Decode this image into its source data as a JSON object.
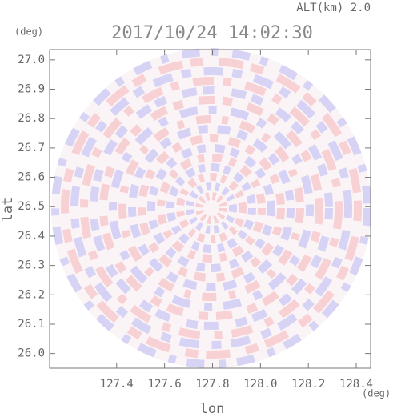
{
  "chart_data": {
    "type": "radar_ppi",
    "title": "2017/10/24 14:02:30",
    "subtitle": "ALT(km)  2.0",
    "xlabel": "lon",
    "ylabel": "lat",
    "x_unit": "(deg)",
    "y_unit": "(deg)",
    "xlim": [
      127.12,
      128.46
    ],
    "ylim": [
      25.95,
      27.035
    ],
    "xticks": [
      127.4,
      127.6,
      127.8,
      {
        "value": 128,
        "label": "128.0"
      },
      128.2,
      128.4
    ],
    "yticks": [
      {
        "value": 26,
        "label": "26.0"
      },
      26.1,
      26.2,
      26.3,
      26.4,
      26.5,
      26.6,
      26.7,
      26.8,
      26.9,
      {
        "value": 27,
        "label": "27.0"
      }
    ]
  }
}
